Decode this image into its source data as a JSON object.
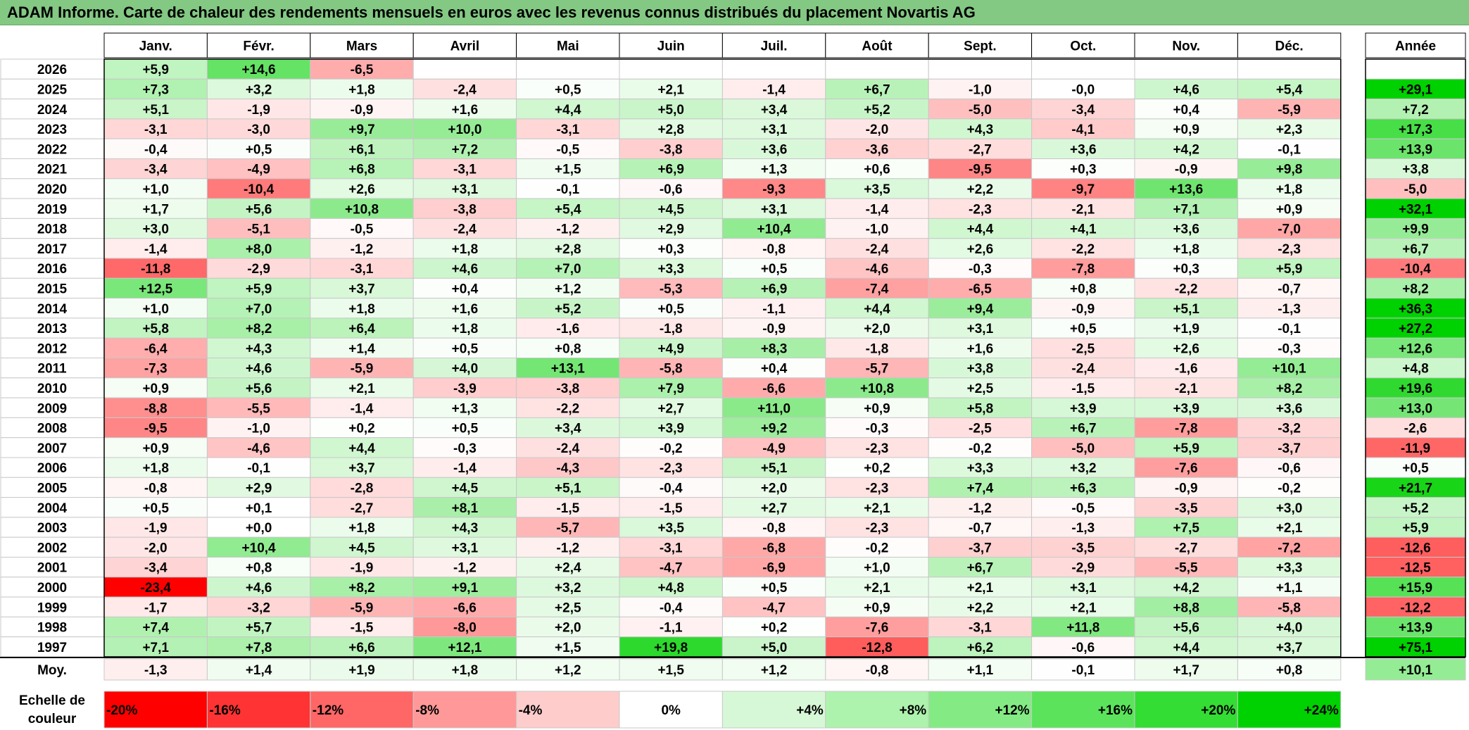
{
  "title": "ADAM Informe. Carte de chaleur des rendements mensuels en euros avec les revenus connus distribués du placement Novartis AG",
  "chart_data": {
    "type": "heatmap",
    "title": "ADAM Informe. Carte de chaleur des rendements mensuels en euros avec les revenus connus distribués du placement Novartis AG",
    "columns": [
      "Janv.",
      "Févr.",
      "Mars",
      "Avril",
      "Mai",
      "Juin",
      "Juil.",
      "Août",
      "Sept.",
      "Oct.",
      "Nov.",
      "Déc."
    ],
    "year_header": "Année",
    "rows": [
      {
        "year": "2026",
        "months": [
          "+5,9",
          "+14,6",
          "-6,5",
          "",
          "",
          "",
          "",
          "",
          "",
          "",
          "",
          ""
        ],
        "total": ""
      },
      {
        "year": "2025",
        "months": [
          "+7,3",
          "+3,2",
          "+1,8",
          "-2,4",
          "+0,5",
          "+2,1",
          "-1,4",
          "+6,7",
          "-1,0",
          "-0,0",
          "+4,6",
          "+5,4"
        ],
        "total": "+29,1"
      },
      {
        "year": "2024",
        "months": [
          "+5,1",
          "-1,9",
          "-0,9",
          "+1,6",
          "+4,4",
          "+5,0",
          "+3,4",
          "+5,2",
          "-5,0",
          "-3,4",
          "+0,4",
          "-5,9"
        ],
        "total": "+7,2"
      },
      {
        "year": "2023",
        "months": [
          "-3,1",
          "-3,0",
          "+9,7",
          "+10,0",
          "-3,1",
          "+2,8",
          "+3,1",
          "-2,0",
          "+4,3",
          "-4,1",
          "+0,9",
          "+2,3"
        ],
        "total": "+17,3"
      },
      {
        "year": "2022",
        "months": [
          "-0,4",
          "+0,5",
          "+6,1",
          "+7,2",
          "-0,5",
          "-3,8",
          "+3,6",
          "-3,6",
          "-2,7",
          "+3,6",
          "+4,2",
          "-0,1"
        ],
        "total": "+13,9"
      },
      {
        "year": "2021",
        "months": [
          "-3,4",
          "-4,9",
          "+6,8",
          "-3,1",
          "+1,5",
          "+6,9",
          "+1,3",
          "+0,6",
          "-9,5",
          "+0,3",
          "-0,9",
          "+9,8"
        ],
        "total": "+3,8"
      },
      {
        "year": "2020",
        "months": [
          "+1,0",
          "-10,4",
          "+2,6",
          "+3,1",
          "-0,1",
          "-0,6",
          "-9,3",
          "+3,5",
          "+2,2",
          "-9,7",
          "+13,6",
          "+1,8"
        ],
        "total": "-5,0"
      },
      {
        "year": "2019",
        "months": [
          "+1,7",
          "+5,6",
          "+10,8",
          "-3,8",
          "+5,4",
          "+4,5",
          "+3,1",
          "-1,4",
          "-2,3",
          "-2,1",
          "+7,1",
          "+0,9"
        ],
        "total": "+32,1"
      },
      {
        "year": "2018",
        "months": [
          "+3,0",
          "-5,1",
          "-0,5",
          "-2,4",
          "-1,2",
          "+2,9",
          "+10,4",
          "-1,0",
          "+4,4",
          "+4,1",
          "+3,6",
          "-7,0"
        ],
        "total": "+9,9"
      },
      {
        "year": "2017",
        "months": [
          "-1,4",
          "+8,0",
          "-1,2",
          "+1,8",
          "+2,8",
          "+0,3",
          "-0,8",
          "-2,4",
          "+2,6",
          "-2,2",
          "+1,8",
          "-2,3"
        ],
        "total": "+6,7"
      },
      {
        "year": "2016",
        "months": [
          "-11,8",
          "-2,9",
          "-3,1",
          "+4,6",
          "+7,0",
          "+3,3",
          "+0,5",
          "-4,6",
          "-0,3",
          "-7,8",
          "+0,3",
          "+5,9"
        ],
        "total": "-10,4"
      },
      {
        "year": "2015",
        "months": [
          "+12,5",
          "+5,9",
          "+3,7",
          "+0,4",
          "+1,2",
          "-5,3",
          "+6,9",
          "-7,4",
          "-6,5",
          "+0,8",
          "-2,2",
          "-0,7"
        ],
        "total": "+8,2"
      },
      {
        "year": "2014",
        "months": [
          "+1,0",
          "+7,0",
          "+1,8",
          "+1,6",
          "+5,2",
          "+0,5",
          "-1,1",
          "+4,4",
          "+9,4",
          "-0,9",
          "+5,1",
          "-1,3"
        ],
        "total": "+36,3"
      },
      {
        "year": "2013",
        "months": [
          "+5,8",
          "+8,2",
          "+6,4",
          "+1,8",
          "-1,6",
          "-1,8",
          "-0,9",
          "+2,0",
          "+3,1",
          "+0,5",
          "+1,9",
          "-0,1"
        ],
        "total": "+27,2"
      },
      {
        "year": "2012",
        "months": [
          "-6,4",
          "+4,3",
          "+1,4",
          "+0,5",
          "+0,8",
          "+4,9",
          "+8,3",
          "-1,8",
          "+1,6",
          "-2,5",
          "+2,6",
          "-0,3"
        ],
        "total": "+12,6"
      },
      {
        "year": "2011",
        "months": [
          "-7,3",
          "+4,6",
          "-5,9",
          "+4,0",
          "+13,1",
          "-5,8",
          "+0,4",
          "-5,7",
          "+3,8",
          "-2,4",
          "-1,6",
          "+10,1"
        ],
        "total": "+4,8"
      },
      {
        "year": "2010",
        "months": [
          "+0,9",
          "+5,6",
          "+2,1",
          "-3,9",
          "-3,8",
          "+7,9",
          "-6,6",
          "+10,8",
          "+2,5",
          "-1,5",
          "-2,1",
          "+8,2"
        ],
        "total": "+19,6"
      },
      {
        "year": "2009",
        "months": [
          "-8,8",
          "-5,5",
          "-1,4",
          "+1,3",
          "-2,2",
          "+2,7",
          "+11,0",
          "+0,9",
          "+5,8",
          "+3,9",
          "+3,9",
          "+3,6"
        ],
        "total": "+13,0"
      },
      {
        "year": "2008",
        "months": [
          "-9,5",
          "-1,0",
          "+0,2",
          "+0,5",
          "+3,4",
          "+3,9",
          "+9,2",
          "-0,3",
          "-2,5",
          "+6,7",
          "-7,8",
          "-3,2"
        ],
        "total": "-2,6"
      },
      {
        "year": "2007",
        "months": [
          "+0,9",
          "-4,6",
          "+4,4",
          "-0,3",
          "-2,4",
          "-0,2",
          "-4,9",
          "-2,3",
          "-0,2",
          "-5,0",
          "+5,9",
          "-3,7"
        ],
        "total": "-11,9"
      },
      {
        "year": "2006",
        "months": [
          "+1,8",
          "-0,1",
          "+3,7",
          "-1,4",
          "-4,3",
          "-2,3",
          "+5,1",
          "+0,2",
          "+3,3",
          "+3,2",
          "-7,6",
          "-0,6"
        ],
        "total": "+0,5"
      },
      {
        "year": "2005",
        "months": [
          "-0,8",
          "+2,9",
          "-2,8",
          "+4,5",
          "+5,1",
          "-0,4",
          "+2,0",
          "-2,3",
          "+7,4",
          "+6,3",
          "-0,9",
          "-0,2"
        ],
        "total": "+21,7"
      },
      {
        "year": "2004",
        "months": [
          "+0,5",
          "+0,1",
          "-2,7",
          "+8,1",
          "-1,5",
          "-1,5",
          "+2,7",
          "+2,1",
          "-1,2",
          "-0,5",
          "-3,5",
          "+3,0"
        ],
        "total": "+5,2"
      },
      {
        "year": "2003",
        "months": [
          "-1,9",
          "+0,0",
          "+1,8",
          "+4,3",
          "-5,7",
          "+3,5",
          "-0,8",
          "-2,3",
          "-0,7",
          "-1,3",
          "+7,5",
          "+2,1"
        ],
        "total": "+5,9"
      },
      {
        "year": "2002",
        "months": [
          "-2,0",
          "+10,4",
          "+4,5",
          "+3,1",
          "-1,2",
          "-3,1",
          "-6,8",
          "-0,2",
          "-3,7",
          "-3,5",
          "-2,7",
          "-7,2"
        ],
        "total": "-12,6"
      },
      {
        "year": "2001",
        "months": [
          "-3,4",
          "+0,8",
          "-1,9",
          "-1,2",
          "+2,4",
          "-4,7",
          "-6,9",
          "+1,0",
          "+6,7",
          "-2,9",
          "-5,5",
          "+3,3"
        ],
        "total": "-12,5"
      },
      {
        "year": "2000",
        "months": [
          "-23,4",
          "+4,6",
          "+8,2",
          "+9,1",
          "+3,2",
          "+4,8",
          "+0,5",
          "+2,1",
          "+2,1",
          "+3,1",
          "+4,2",
          "+1,1"
        ],
        "total": "+15,9"
      },
      {
        "year": "1999",
        "months": [
          "-1,7",
          "-3,2",
          "-5,9",
          "-6,6",
          "+2,5",
          "-0,4",
          "-4,7",
          "+0,9",
          "+2,2",
          "+2,1",
          "+8,8",
          "-5,8"
        ],
        "total": "-12,2"
      },
      {
        "year": "1998",
        "months": [
          "+7,4",
          "+5,7",
          "-1,5",
          "-8,0",
          "+2,0",
          "-1,1",
          "+0,2",
          "-7,6",
          "-3,1",
          "+11,8",
          "+5,6",
          "+4,0"
        ],
        "total": "+13,9"
      },
      {
        "year": "1997",
        "months": [
          "+7,1",
          "+7,8",
          "+6,6",
          "+12,1",
          "+1,5",
          "+19,8",
          "+5,0",
          "-12,8",
          "+6,2",
          "-0,6",
          "+4,4",
          "+3,7"
        ],
        "total": "+75,1"
      }
    ],
    "average": {
      "label": "Moy.",
      "months": [
        "-1,3",
        "+1,4",
        "+1,9",
        "+1,8",
        "+1,2",
        "+1,5",
        "+1,2",
        "-0,8",
        "+1,1",
        "-0,1",
        "+1,7",
        "+0,8"
      ],
      "total": "+10,1"
    },
    "scale": {
      "label_lines": [
        "Echelle de",
        "couleur"
      ],
      "stops": [
        {
          "label": "-20%",
          "value": -20,
          "color": "#ff0000"
        },
        {
          "label": "-16%",
          "value": -16,
          "color": "#ff3333"
        },
        {
          "label": "-12%",
          "value": -12,
          "color": "#ff6666"
        },
        {
          "label": "-8%",
          "value": -8,
          "color": "#ff9999"
        },
        {
          "label": "-4%",
          "value": -4,
          "color": "#ffcccc"
        },
        {
          "label": "0%",
          "value": 0,
          "color": "#ffffff"
        },
        {
          "label": "+4%",
          "value": 4,
          "color": "#d6f8d6"
        },
        {
          "label": "+8%",
          "value": 8,
          "color": "#adf2ad"
        },
        {
          "label": "+12%",
          "value": 12,
          "color": "#84eb84"
        },
        {
          "label": "+16%",
          "value": 16,
          "color": "#5be45b"
        },
        {
          "label": "+20%",
          "value": 20,
          "color": "#33dd33"
        },
        {
          "label": "+24%",
          "value": 24,
          "color": "#00d100"
        }
      ]
    },
    "colors": {
      "negative_max": "#ff0000",
      "neutral": "#ffffff",
      "positive_max": "#00d100",
      "title_background": "#83c883"
    }
  }
}
